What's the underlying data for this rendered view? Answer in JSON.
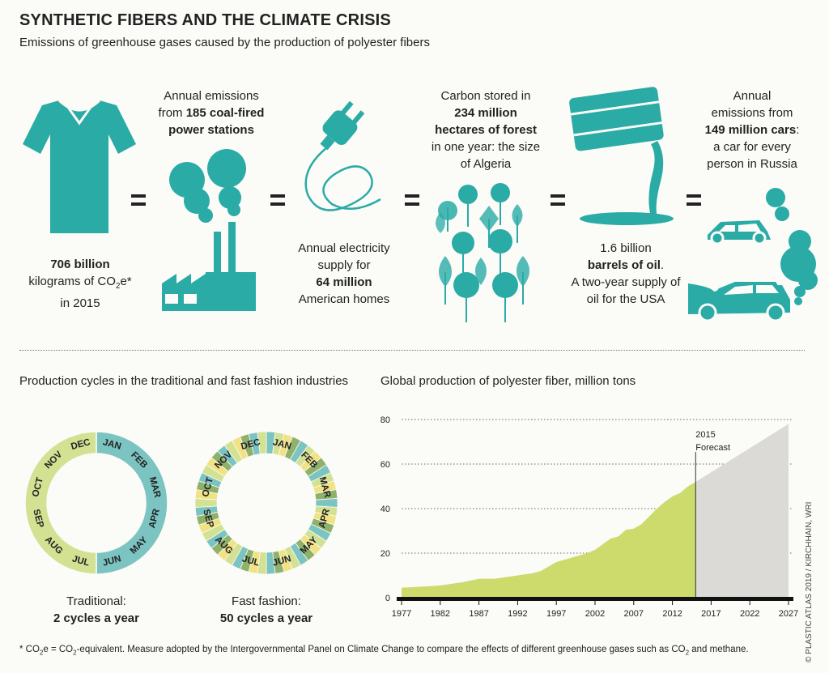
{
  "header": {
    "title": "SYNTHETIC FIBERS AND THE CLIMATE CRISIS",
    "subtitle": "Emissions of greenhouse gases caused by the production of polyester fibers"
  },
  "equivalences": {
    "shirt": {
      "icon": "tshirt-icon",
      "line1": "706 billion",
      "line2": "kilograms of CO",
      "line2_sub": "2",
      "line2_end": "e*",
      "line3": "in 2015"
    },
    "power": {
      "icon": "power-station-icon",
      "line1": "Annual emissions",
      "line2_pre": "from ",
      "line2_bold": "185 coal-fired",
      "line3": "power stations"
    },
    "electricity": {
      "icon": "power-plug-icon",
      "line1": "Annual electricity",
      "line2": "supply for",
      "line3": "64 million",
      "line4": "American homes"
    },
    "forest": {
      "icon": "forest-icon",
      "line1": "Carbon stored in",
      "line2": "234 million",
      "line3": "hectares of forest",
      "line4": "in one year: the size",
      "line5": "of Algeria"
    },
    "oil": {
      "icon": "oil-barrel-icon",
      "line1": "1.6 billion",
      "line2": "barrels of oil",
      "line2_end": ".",
      "line3": "A two-year supply of",
      "line4": "oil for the USA"
    },
    "cars": {
      "icon": "cars-icon",
      "line1": "Annual",
      "line2": "emissions from",
      "line3": "149 million cars",
      "line3_end": ":",
      "line4": "a car for every",
      "line5": "person in Russia"
    }
  },
  "cycles": {
    "heading": "Production cycles in the traditional and fast fashion industries",
    "months": [
      "JAN",
      "FEB",
      "MAR",
      "APR",
      "MAY",
      "JUN",
      "JUL",
      "AUG",
      "SEP",
      "OCT",
      "NOV",
      "DEC"
    ],
    "traditional": {
      "label": "Traditional:",
      "value": "2 cycles a year",
      "cycles_per_year": 2,
      "colors": [
        "#7cc4c1",
        "#d3e193"
      ]
    },
    "fast": {
      "label": "Fast fashion:",
      "value": "50 cycles a year",
      "cycles_per_year": 50,
      "colors": [
        "#7cc4c1",
        "#d3e193",
        "#f1e384",
        "#8fb16a"
      ]
    }
  },
  "chart_data": {
    "type": "area",
    "title": "Global production of polyester fiber, million tons",
    "x": [
      1977,
      1980,
      1982,
      1984,
      1985,
      1987,
      1989,
      1990,
      1992,
      1994,
      1995,
      1996,
      1997,
      1998,
      1999,
      2000,
      2001,
      2002,
      2003,
      2004,
      2005,
      2006,
      2007,
      2008,
      2009,
      2010,
      2011,
      2012,
      2013,
      2014,
      2015
    ],
    "values": [
      4.5,
      5,
      5.5,
      6.5,
      7,
      8.5,
      8.5,
      9,
      10,
      11,
      12,
      14,
      16,
      17,
      18,
      19,
      20,
      21.5,
      24,
      26.5,
      27.5,
      30.5,
      31,
      33,
      36.5,
      40,
      43,
      45.5,
      47,
      50,
      52
    ],
    "forecast": {
      "x": [
        2015,
        2027
      ],
      "values": [
        52,
        78
      ],
      "label": "Forecast",
      "marker_label": "2015"
    },
    "xticks": [
      1977,
      1982,
      1987,
      1992,
      1997,
      2002,
      2007,
      2012,
      2017,
      2022,
      2027
    ],
    "yticks": [
      0,
      20,
      40,
      60,
      80
    ],
    "xlim": [
      1977,
      2027
    ],
    "ylim": [
      0,
      80
    ],
    "grid": true,
    "colors": {
      "history": "#ccdb6b",
      "forecast": "#dcdad6"
    }
  },
  "footnote": {
    "p1": "* CO",
    "s1": "2",
    "p2": "e = CO",
    "s2": "2",
    "p3": "-equivalent. Measure adopted by the Intergovernmental Panel on Climate Change to compare the effects of different greenhouse gases such as CO",
    "s3": "2",
    "p4": " and methane."
  },
  "credit": "© PLASTIC ATLAS 2019 / KIRCHHAIN, WRI",
  "colors": {
    "accent": "#2aaba6",
    "text": "#222222"
  }
}
